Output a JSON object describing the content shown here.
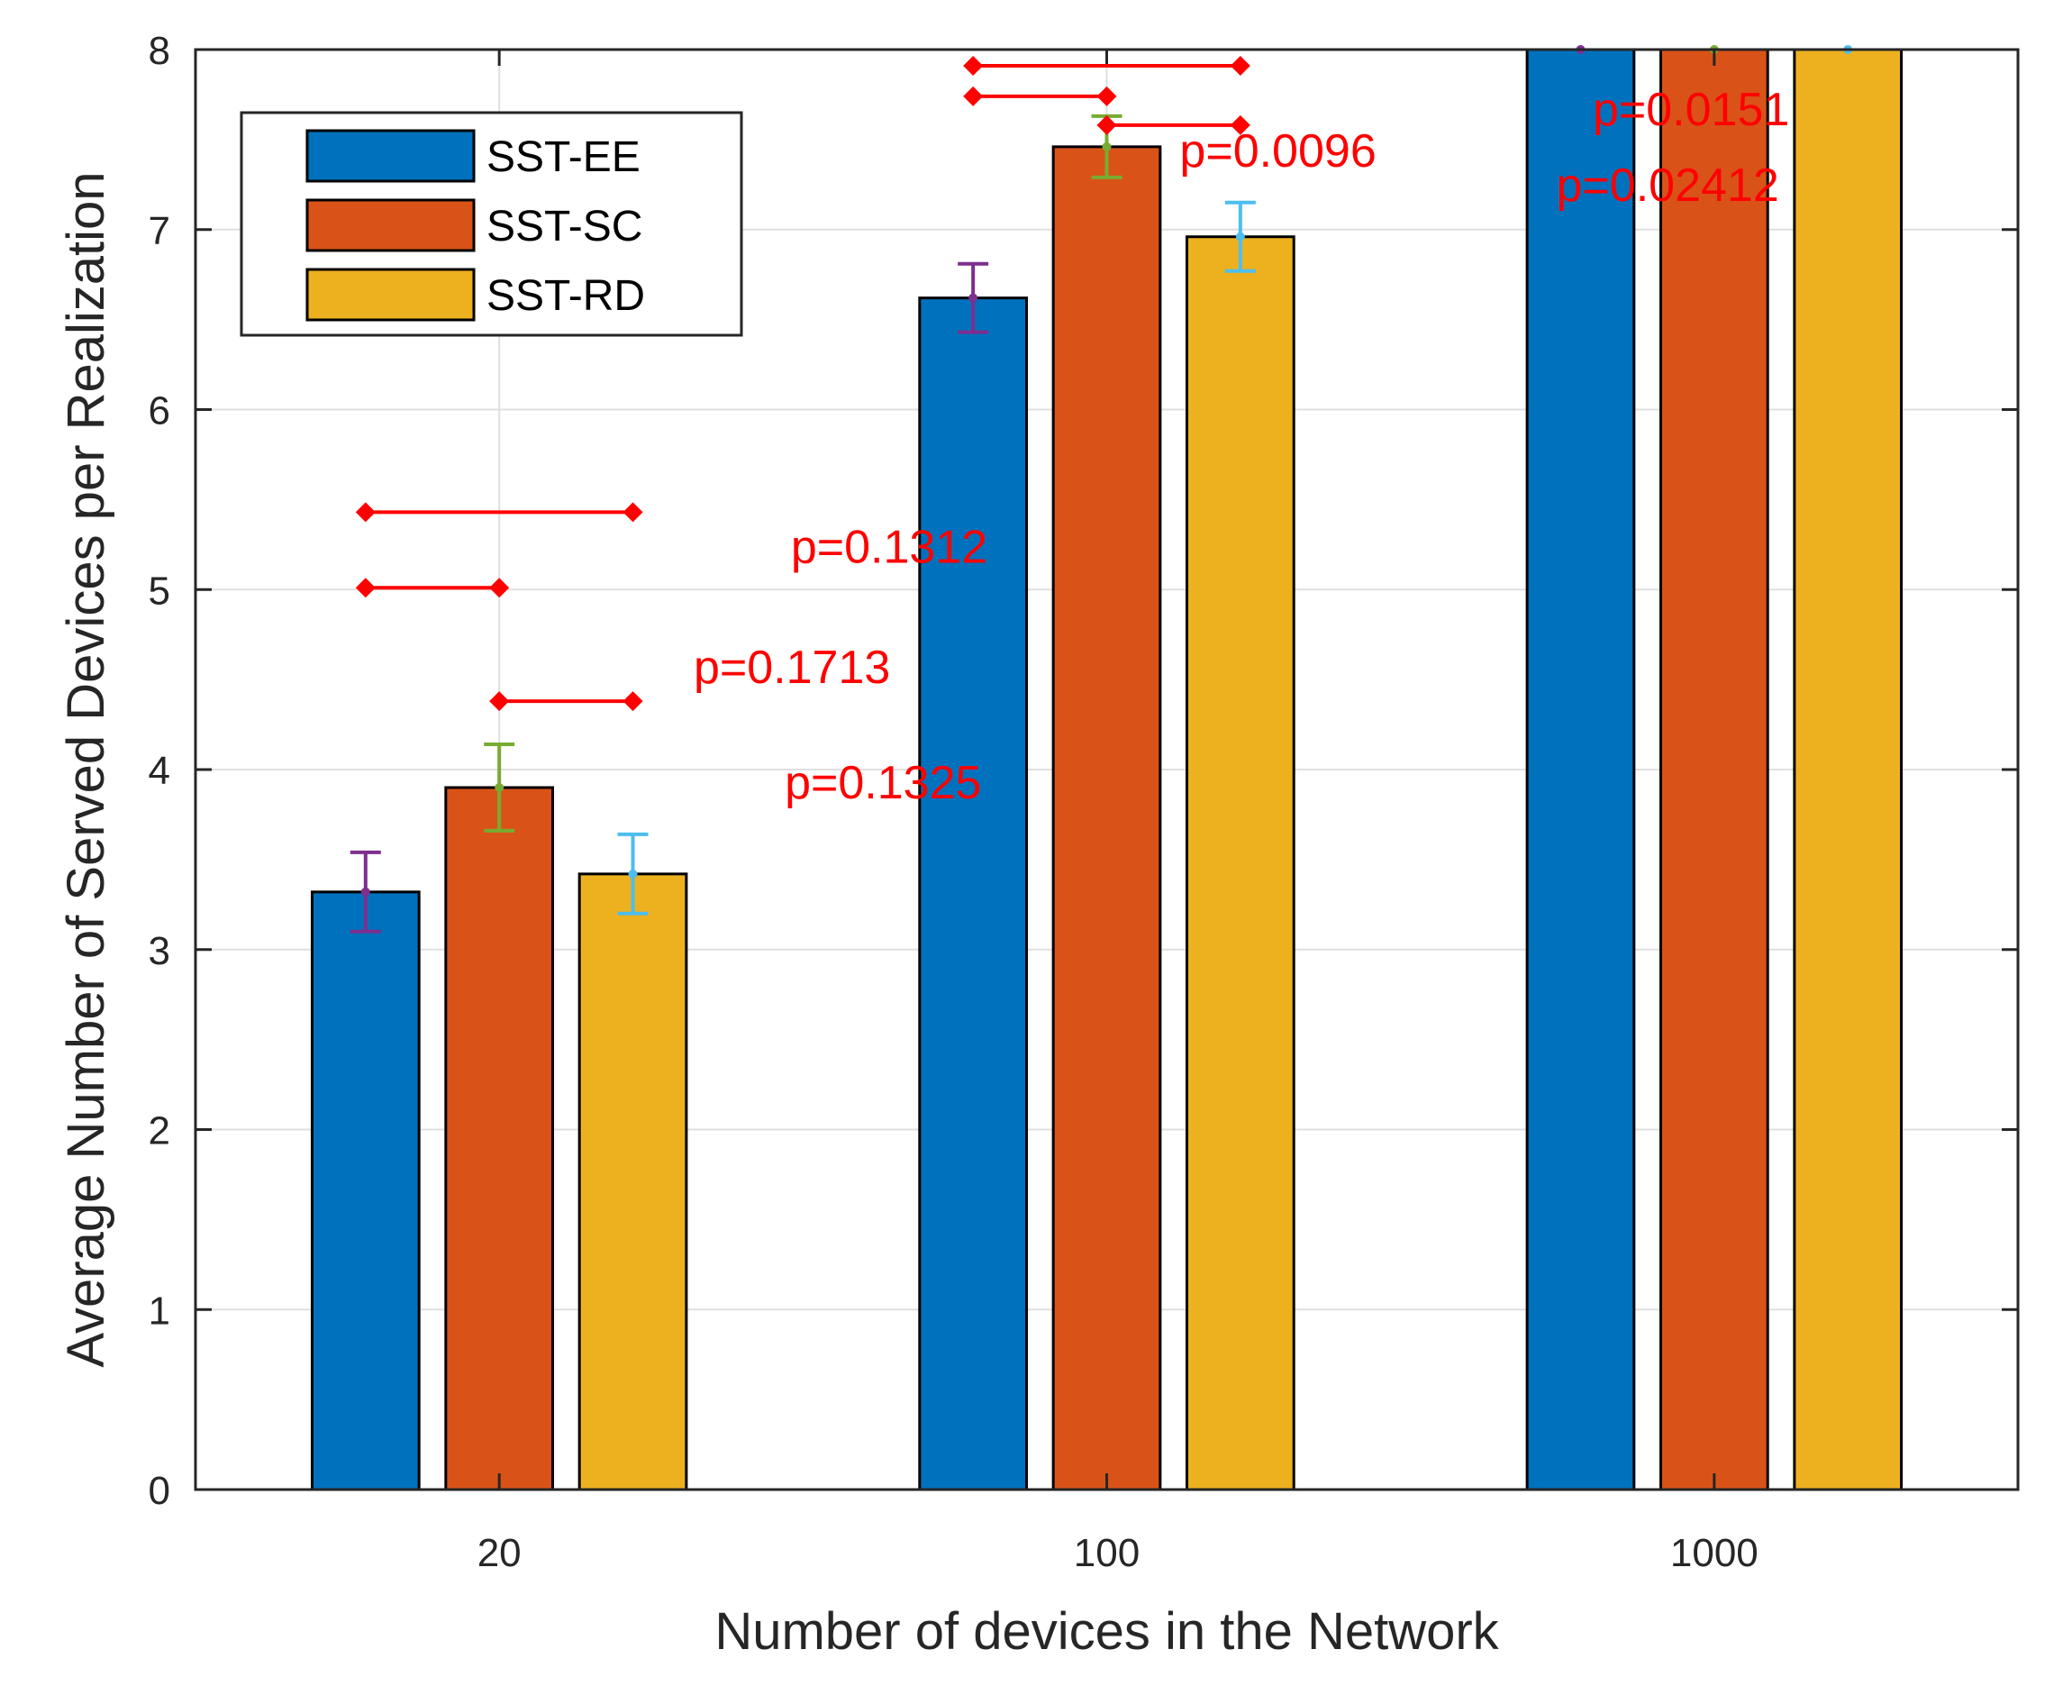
{
  "chart_data": {
    "type": "bar",
    "title": "",
    "xlabel": "Number of devices in the Network",
    "ylabel": "Average Number of Served Devices per Realization",
    "categories": [
      "20",
      "100",
      "1000"
    ],
    "ylim": [
      0,
      8
    ],
    "yticks": [
      "0",
      "1",
      "2",
      "3",
      "4",
      "5",
      "6",
      "7",
      "8"
    ],
    "grid": true,
    "legend_position": "top-left",
    "series": [
      {
        "name": "SST-EE",
        "color": "#0072BD",
        "error_color": "#7E2F8E",
        "values": [
          3.32,
          6.62,
          8.0
        ],
        "err_low": [
          3.1,
          6.43,
          8.0
        ],
        "err_high": [
          3.54,
          6.81,
          8.0
        ]
      },
      {
        "name": "SST-SC",
        "color": "#D95319",
        "error_color": "#77AC30",
        "values": [
          3.9,
          7.46,
          8.0
        ],
        "err_low": [
          3.66,
          7.29,
          8.0
        ],
        "err_high": [
          4.14,
          7.63,
          8.0
        ]
      },
      {
        "name": "SST-RD",
        "color": "#EDB120",
        "error_color": "#4DBEEE",
        "values": [
          3.42,
          6.96,
          8.0
        ],
        "err_low": [
          3.2,
          6.77,
          8.0
        ],
        "err_high": [
          3.64,
          7.15,
          8.0
        ]
      }
    ],
    "significance": [
      {
        "category": 0,
        "from": 0,
        "to": 2,
        "y": 5.43,
        "label": "p=0.1312",
        "label_x": 0.98,
        "label_y": 5.15
      },
      {
        "category": 0,
        "from": 0,
        "to": 1,
        "y": 5.01,
        "label": "p=0.1713",
        "label_x": 0.82,
        "label_y": 4.48
      },
      {
        "category": 0,
        "from": 1,
        "to": 2,
        "y": 4.38,
        "label": "p=0.1325",
        "label_x": 0.97,
        "label_y": 3.84
      },
      {
        "category": 1,
        "from": 0,
        "to": 2,
        "y": 7.91,
        "label": "p=0.0151",
        "label_x": 2.3,
        "label_y": 7.58
      },
      {
        "category": 1,
        "from": 0,
        "to": 1,
        "y": 7.74,
        "label": "p=0.0096",
        "label_x": 1.62,
        "label_y": 7.35
      },
      {
        "category": 1,
        "from": 1,
        "to": 2,
        "y": 7.58,
        "label": "p=0.02412",
        "label_x": 2.24,
        "label_y": 7.16
      }
    ]
  }
}
